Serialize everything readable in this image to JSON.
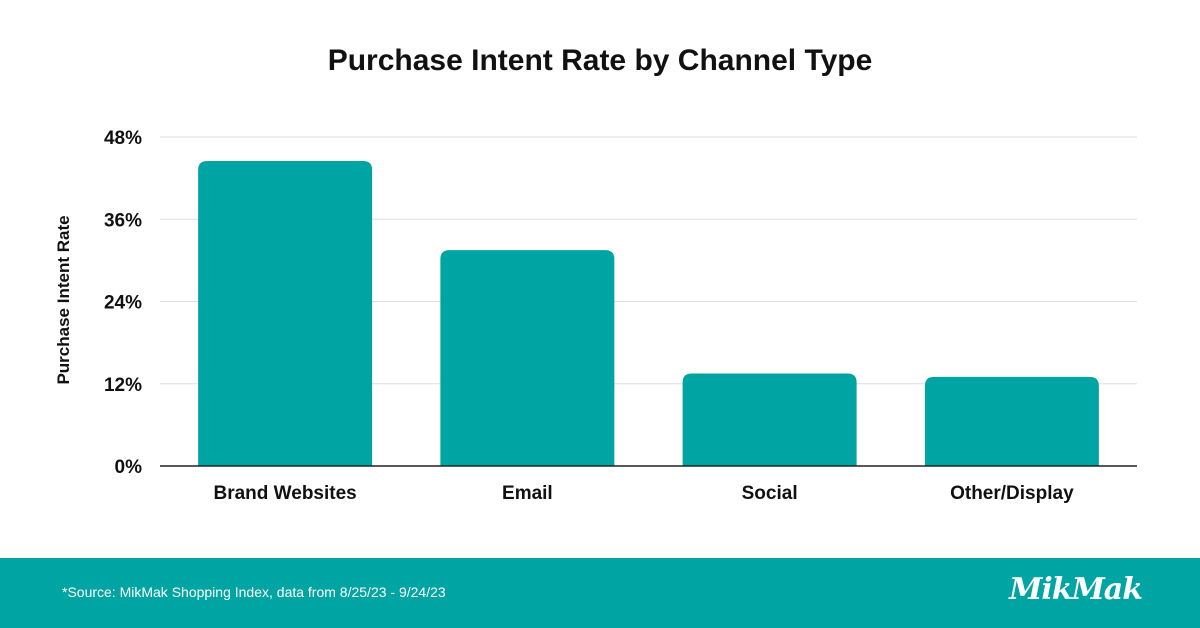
{
  "colors": {
    "bar": "#00A5A3",
    "footer": "#00A5A3",
    "grid": "#dddddd",
    "axis": "#222222",
    "text": "#111111"
  },
  "chart_data": {
    "type": "bar",
    "title": "Purchase Intent Rate by Channel Type",
    "xlabel": "",
    "ylabel": "Purchase Intent Rate",
    "categories": [
      "Brand Websites",
      "Email",
      "Social",
      "Other/Display"
    ],
    "values": [
      44.5,
      31.5,
      13.5,
      13.0
    ],
    "ylim": [
      0,
      48
    ],
    "yticks": [
      0,
      12,
      24,
      36,
      48
    ],
    "ytick_labels": [
      "0%",
      "12%",
      "24%",
      "36%",
      "48%"
    ],
    "grid": true,
    "legend": "none"
  },
  "footer": {
    "source": "*Source: MikMak Shopping Index, data from 8/25/23 - 9/24/23",
    "logo": "MikMak"
  }
}
